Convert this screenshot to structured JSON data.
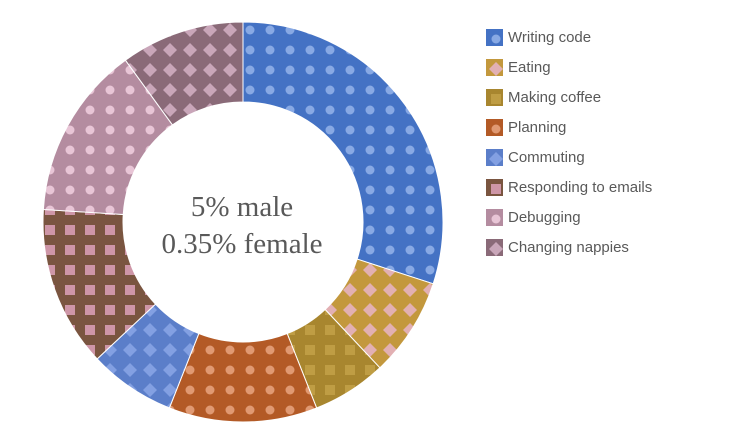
{
  "chart_data": {
    "type": "pie",
    "title": "",
    "center_text": [
      "5% male",
      "0.35% female"
    ],
    "categories": [
      "Writing code",
      "Eating",
      "Making coffee",
      "Planning",
      "Commuting",
      "Responding to emails",
      "Debugging",
      "Changing nappies"
    ],
    "values": [
      30,
      8,
      6,
      12,
      7,
      13,
      14,
      10
    ],
    "colors": [
      "#4472c4",
      "#c3983d",
      "#a8862f",
      "#b35a26",
      "#5b7ec9",
      "#7a5540",
      "#b48ca0",
      "#8a6a78"
    ],
    "pattern_dot_colors": [
      "#8fb0e8",
      "#e8b4c8",
      "#c4a24a",
      "#e5a07a",
      "#8aa6e6",
      "#e3a6c0",
      "#eecbdc",
      "#d4b0c4"
    ],
    "legend_position": "right",
    "hole_ratio": 0.6
  }
}
